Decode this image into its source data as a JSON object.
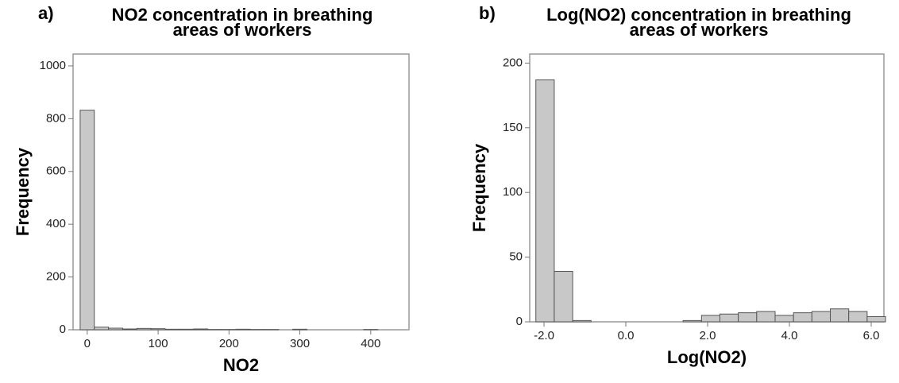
{
  "chart_data": [
    {
      "type": "histogram",
      "panel": "a)",
      "title_lines": [
        "NO2 concentration in breathing",
        "areas of workers"
      ],
      "x_label": "NO2",
      "y_label": "Frequency",
      "color": "#c8c8c8",
      "bins": [
        -10,
        10,
        30,
        50,
        70,
        90,
        110,
        130,
        150,
        170,
        190,
        210,
        230,
        250,
        270,
        290,
        310,
        330,
        350,
        370,
        390,
        410
      ],
      "values": [
        832,
        10,
        6,
        3,
        5,
        4,
        2,
        2,
        3,
        1,
        1,
        2,
        1,
        1,
        0,
        2,
        0,
        0,
        0,
        0,
        1
      ],
      "xlim": [
        -20,
        454
      ],
      "xticks": [
        0,
        100,
        200,
        300,
        400
      ],
      "ylim": [
        0,
        1045
      ],
      "yticks": [
        0,
        200,
        400,
        600,
        800,
        1000
      ]
    },
    {
      "type": "histogram",
      "panel": "b)",
      "title_lines": [
        "Log(NO2) concentration in breathing",
        "areas of workers"
      ],
      "x_label": "Log(NO2)",
      "y_label": "Frequency",
      "color": "#c8c8c8",
      "bins": [
        -2.2,
        -1.75,
        -1.3,
        -0.85,
        -0.4,
        0.05,
        0.5,
        0.95,
        1.4,
        1.85,
        2.3,
        2.75,
        3.2,
        3.65,
        4.1,
        4.55,
        5.0,
        5.45,
        5.9,
        6.35
      ],
      "values": [
        187,
        39,
        1,
        0,
        0,
        0,
        0,
        0,
        1,
        5,
        6,
        7,
        8,
        5,
        7,
        8,
        10,
        8,
        4
      ],
      "xlim": [
        -2.35,
        6.31
      ],
      "xticks": [
        {
          "value": -2,
          "label": "-2.0"
        },
        {
          "value": 0,
          "label": "0.0"
        },
        {
          "value": 2,
          "label": "2.0"
        },
        {
          "value": 4,
          "label": "4.0"
        },
        {
          "value": 6,
          "label": "6.0"
        }
      ],
      "ylim": [
        0,
        207
      ],
      "yticks": [
        0,
        50,
        100,
        150,
        200
      ]
    }
  ]
}
